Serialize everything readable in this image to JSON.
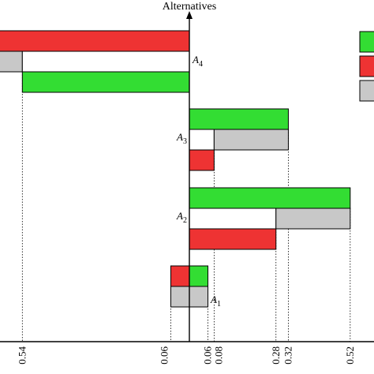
{
  "chart_data": {
    "type": "bar",
    "title": "",
    "ylabel": "Alternatives",
    "xlabel": "",
    "colors": {
      "green": "#33dd33",
      "red": "#ee3333",
      "gray": "#c8c8c8",
      "white": "#ffffff"
    },
    "alternatives": [
      {
        "id": "A1",
        "letter": "A",
        "sub": "1",
        "rows": [
          {
            "segments": [
              {
                "color": "red",
                "from": -0.06,
                "to": 0.0
              },
              {
                "color": "green",
                "from": 0.0,
                "to": 0.06
              }
            ]
          },
          {
            "segments": [
              {
                "color": "gray",
                "from": -0.06,
                "to": 0.06
              }
            ]
          }
        ]
      },
      {
        "id": "A2",
        "letter": "A",
        "sub": "2",
        "rows": [
          {
            "segments": [
              {
                "color": "green",
                "from": 0.0,
                "to": 0.52
              }
            ]
          },
          {
            "segments": [
              {
                "color": "white",
                "from": 0.0,
                "to": 0.28
              },
              {
                "color": "gray",
                "from": 0.28,
                "to": 0.52
              }
            ]
          },
          {
            "segments": [
              {
                "color": "red",
                "from": 0.0,
                "to": 0.28
              }
            ]
          }
        ]
      },
      {
        "id": "A3",
        "letter": "A",
        "sub": "3",
        "rows": [
          {
            "segments": [
              {
                "color": "green",
                "from": 0.0,
                "to": 0.32
              }
            ]
          },
          {
            "segments": [
              {
                "color": "white",
                "from": 0.0,
                "to": 0.08
              },
              {
                "color": "gray",
                "from": 0.08,
                "to": 0.32
              }
            ]
          },
          {
            "segments": [
              {
                "color": "red",
                "from": 0.0,
                "to": 0.08
              }
            ]
          }
        ]
      },
      {
        "id": "A4",
        "letter": "A",
        "sub": "4",
        "rows": [
          {
            "segments": [
              {
                "color": "red",
                "from": -0.62,
                "to": 0.0
              }
            ]
          },
          {
            "segments": [
              {
                "color": "gray",
                "from": -0.62,
                "to": -0.54
              },
              {
                "color": "white",
                "from": -0.54,
                "to": 0.0
              }
            ]
          },
          {
            "segments": [
              {
                "color": "green",
                "from": -0.54,
                "to": 0.0
              }
            ]
          }
        ]
      }
    ],
    "ticks": [
      {
        "value": -0.54,
        "label": "0.54"
      },
      {
        "value": -0.06,
        "label": "0.06"
      },
      {
        "value": 0.06,
        "label": "0.06"
      },
      {
        "value": 0.08,
        "label": "0.08"
      },
      {
        "value": 0.28,
        "label": "0.28"
      },
      {
        "value": 0.32,
        "label": "0.32"
      },
      {
        "value": 0.52,
        "label": "0.52"
      }
    ],
    "legend": {
      "placement": "top-right",
      "colors": [
        "green",
        "red",
        "gray"
      ]
    }
  }
}
